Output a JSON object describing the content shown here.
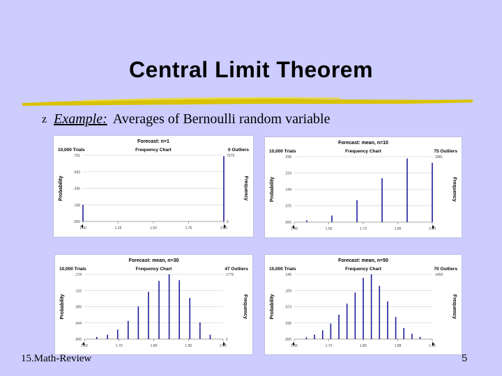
{
  "slide": {
    "title": "Central Limit Theorem",
    "bullet_symbol": "z",
    "bullet_label": "Example:",
    "bullet_text": "Averages of Bernoulli random variable",
    "footer": "15.Math-Review",
    "page_number": "5"
  },
  "colors": {
    "background": "#ccccff",
    "bar": "#1c1c9c",
    "underline": "#d9c200"
  },
  "chart_data": [
    {
      "type": "bar",
      "title": "Forecast: n=1",
      "trials": "10,000 Trials",
      "subtitle": "Frequency Chart",
      "outliers": "0 Outliers",
      "ylabel": "Probability",
      "ylabel_right": "Frequency",
      "y_ticks": [
        ".000",
        ".198",
        ".396",
        ".593",
        ".791"
      ],
      "y_ticks_right": [
        "0",
        "",
        "",
        "",
        "7379"
      ],
      "x_ticks": [
        "1.00",
        "1.25",
        "1.50",
        "1.75",
        "2.00"
      ],
      "xlim": [
        1.0,
        2.0
      ],
      "ylim": [
        0,
        0.791
      ],
      "bars": [
        {
          "x": 1.0,
          "y": 0.2
        },
        {
          "x": 2.0,
          "y": 0.78
        }
      ]
    },
    {
      "type": "bar",
      "title": "Forecast: mean, n=10",
      "trials": "10,000 Trials",
      "subtitle": "Frequency Chart",
      "outliers": "75 Outliers",
      "ylabel": "Probability",
      "ylabel_right": "Frequency",
      "y_ticks": [
        ".000",
        ".075",
        ".149",
        ".224",
        ".298"
      ],
      "y_ticks_right": [
        "",
        "",
        "",
        "",
        "2981"
      ],
      "x_ticks": [
        "1.49",
        "1.56",
        "1.73",
        "1.85",
        "2.00"
      ],
      "xlim": [
        1.45,
        2.0
      ],
      "ylim": [
        0,
        0.298
      ],
      "bars": [
        {
          "x": 1.5,
          "y": 0.008
        },
        {
          "x": 1.6,
          "y": 0.03
        },
        {
          "x": 1.7,
          "y": 0.1
        },
        {
          "x": 1.8,
          "y": 0.2
        },
        {
          "x": 1.9,
          "y": 0.29
        },
        {
          "x": 2.0,
          "y": 0.27
        }
      ]
    },
    {
      "type": "bar",
      "title": "Forecast: mean, n=30",
      "trials": "10,000 Trials",
      "subtitle": "Frequency Chart",
      "outliers": "47 Outliers",
      "ylabel": "Probability",
      "ylabel_right": "Frequency",
      "y_ticks": [
        ".000",
        ".044",
        ".089",
        ".133",
        ".178"
      ],
      "y_ticks_right": [
        "0",
        "",
        "",
        "",
        "1775"
      ],
      "x_ticks": [
        "1.60",
        "1.70",
        "1.80",
        "1.90",
        "2.00"
      ],
      "xlim": [
        1.55,
        2.0
      ],
      "ylim": [
        0,
        0.178
      ],
      "bars": [
        {
          "x": 1.59,
          "y": 0.006
        },
        {
          "x": 1.625,
          "y": 0.012
        },
        {
          "x": 1.658,
          "y": 0.026
        },
        {
          "x": 1.692,
          "y": 0.05
        },
        {
          "x": 1.725,
          "y": 0.09
        },
        {
          "x": 1.758,
          "y": 0.13
        },
        {
          "x": 1.792,
          "y": 0.16
        },
        {
          "x": 1.825,
          "y": 0.178
        },
        {
          "x": 1.858,
          "y": 0.162
        },
        {
          "x": 1.892,
          "y": 0.113
        },
        {
          "x": 1.925,
          "y": 0.046
        },
        {
          "x": 1.958,
          "y": 0.012
        }
      ]
    },
    {
      "type": "bar",
      "title": "Forecast: mean, n=50",
      "trials": "10,000 Trials",
      "subtitle": "Frequency Chart",
      "outliers": "70 Outliers",
      "ylabel": "Probability",
      "ylabel_right": "Frequency",
      "y_ticks": [
        ".000",
        ".036",
        ".073",
        ".109",
        ".146"
      ],
      "y_ticks_right": [
        "",
        "",
        "",
        "",
        "1459"
      ],
      "x_ticks": [
        "1.65",
        "1.73",
        "1.80",
        "1.88",
        "1.95"
      ],
      "xlim": [
        1.63,
        1.97
      ],
      "ylim": [
        0,
        0.146
      ],
      "bars": [
        {
          "x": 1.66,
          "y": 0.004
        },
        {
          "x": 1.68,
          "y": 0.01
        },
        {
          "x": 1.7,
          "y": 0.02
        },
        {
          "x": 1.72,
          "y": 0.035
        },
        {
          "x": 1.74,
          "y": 0.055
        },
        {
          "x": 1.76,
          "y": 0.08
        },
        {
          "x": 1.78,
          "y": 0.105
        },
        {
          "x": 1.8,
          "y": 0.138
        },
        {
          "x": 1.82,
          "y": 0.146
        },
        {
          "x": 1.84,
          "y": 0.12
        },
        {
          "x": 1.86,
          "y": 0.085
        },
        {
          "x": 1.88,
          "y": 0.05
        },
        {
          "x": 1.9,
          "y": 0.025
        },
        {
          "x": 1.92,
          "y": 0.012
        },
        {
          "x": 1.94,
          "y": 0.005
        }
      ]
    }
  ]
}
